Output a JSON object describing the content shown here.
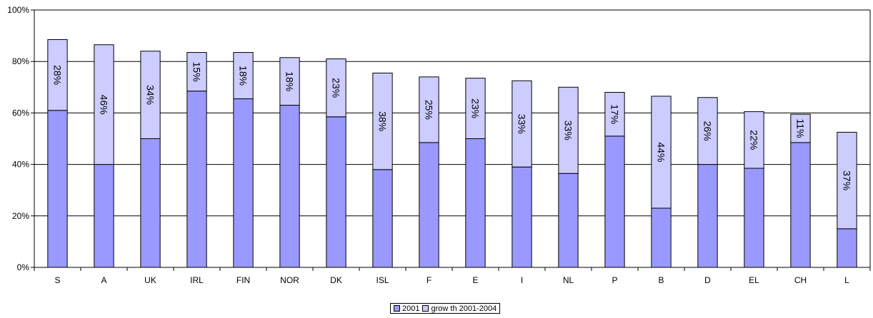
{
  "chart_data": {
    "type": "bar",
    "stacked": true,
    "categories": [
      "S",
      "A",
      "UK",
      "IRL",
      "FIN",
      "NOR",
      "DK",
      "ISL",
      "F",
      "E",
      "I",
      "NL",
      "P",
      "B",
      "D",
      "EL",
      "CH",
      "L"
    ],
    "series": [
      {
        "name": "2001",
        "color": "#9999ff",
        "values": [
          61,
          40,
          50,
          68.5,
          65.5,
          63,
          58.5,
          38,
          48.5,
          50,
          39,
          36.5,
          51,
          23,
          40,
          38.5,
          48.5,
          15
        ]
      },
      {
        "name": "grow th 2001-2004",
        "color": "#ccccff",
        "values": [
          27.5,
          46.5,
          34,
          15,
          18,
          18.5,
          22.5,
          37.5,
          25.5,
          23.5,
          33.5,
          33.5,
          17,
          43.5,
          26,
          22,
          11,
          37.5
        ],
        "data_labels": [
          "28%",
          "46%",
          "34%",
          "15%",
          "18%",
          "18%",
          "23%",
          "38%",
          "25%",
          "23%",
          "33%",
          "33%",
          "17%",
          "44%",
          "26%",
          "22%",
          "11%",
          "37%"
        ]
      }
    ],
    "ylim": [
      0,
      100
    ],
    "yticks": [
      "0%",
      "20%",
      "40%",
      "60%",
      "80%",
      "100%"
    ],
    "grid": true,
    "legend_position": "bottom",
    "title": "",
    "xlabel": "",
    "ylabel": ""
  }
}
